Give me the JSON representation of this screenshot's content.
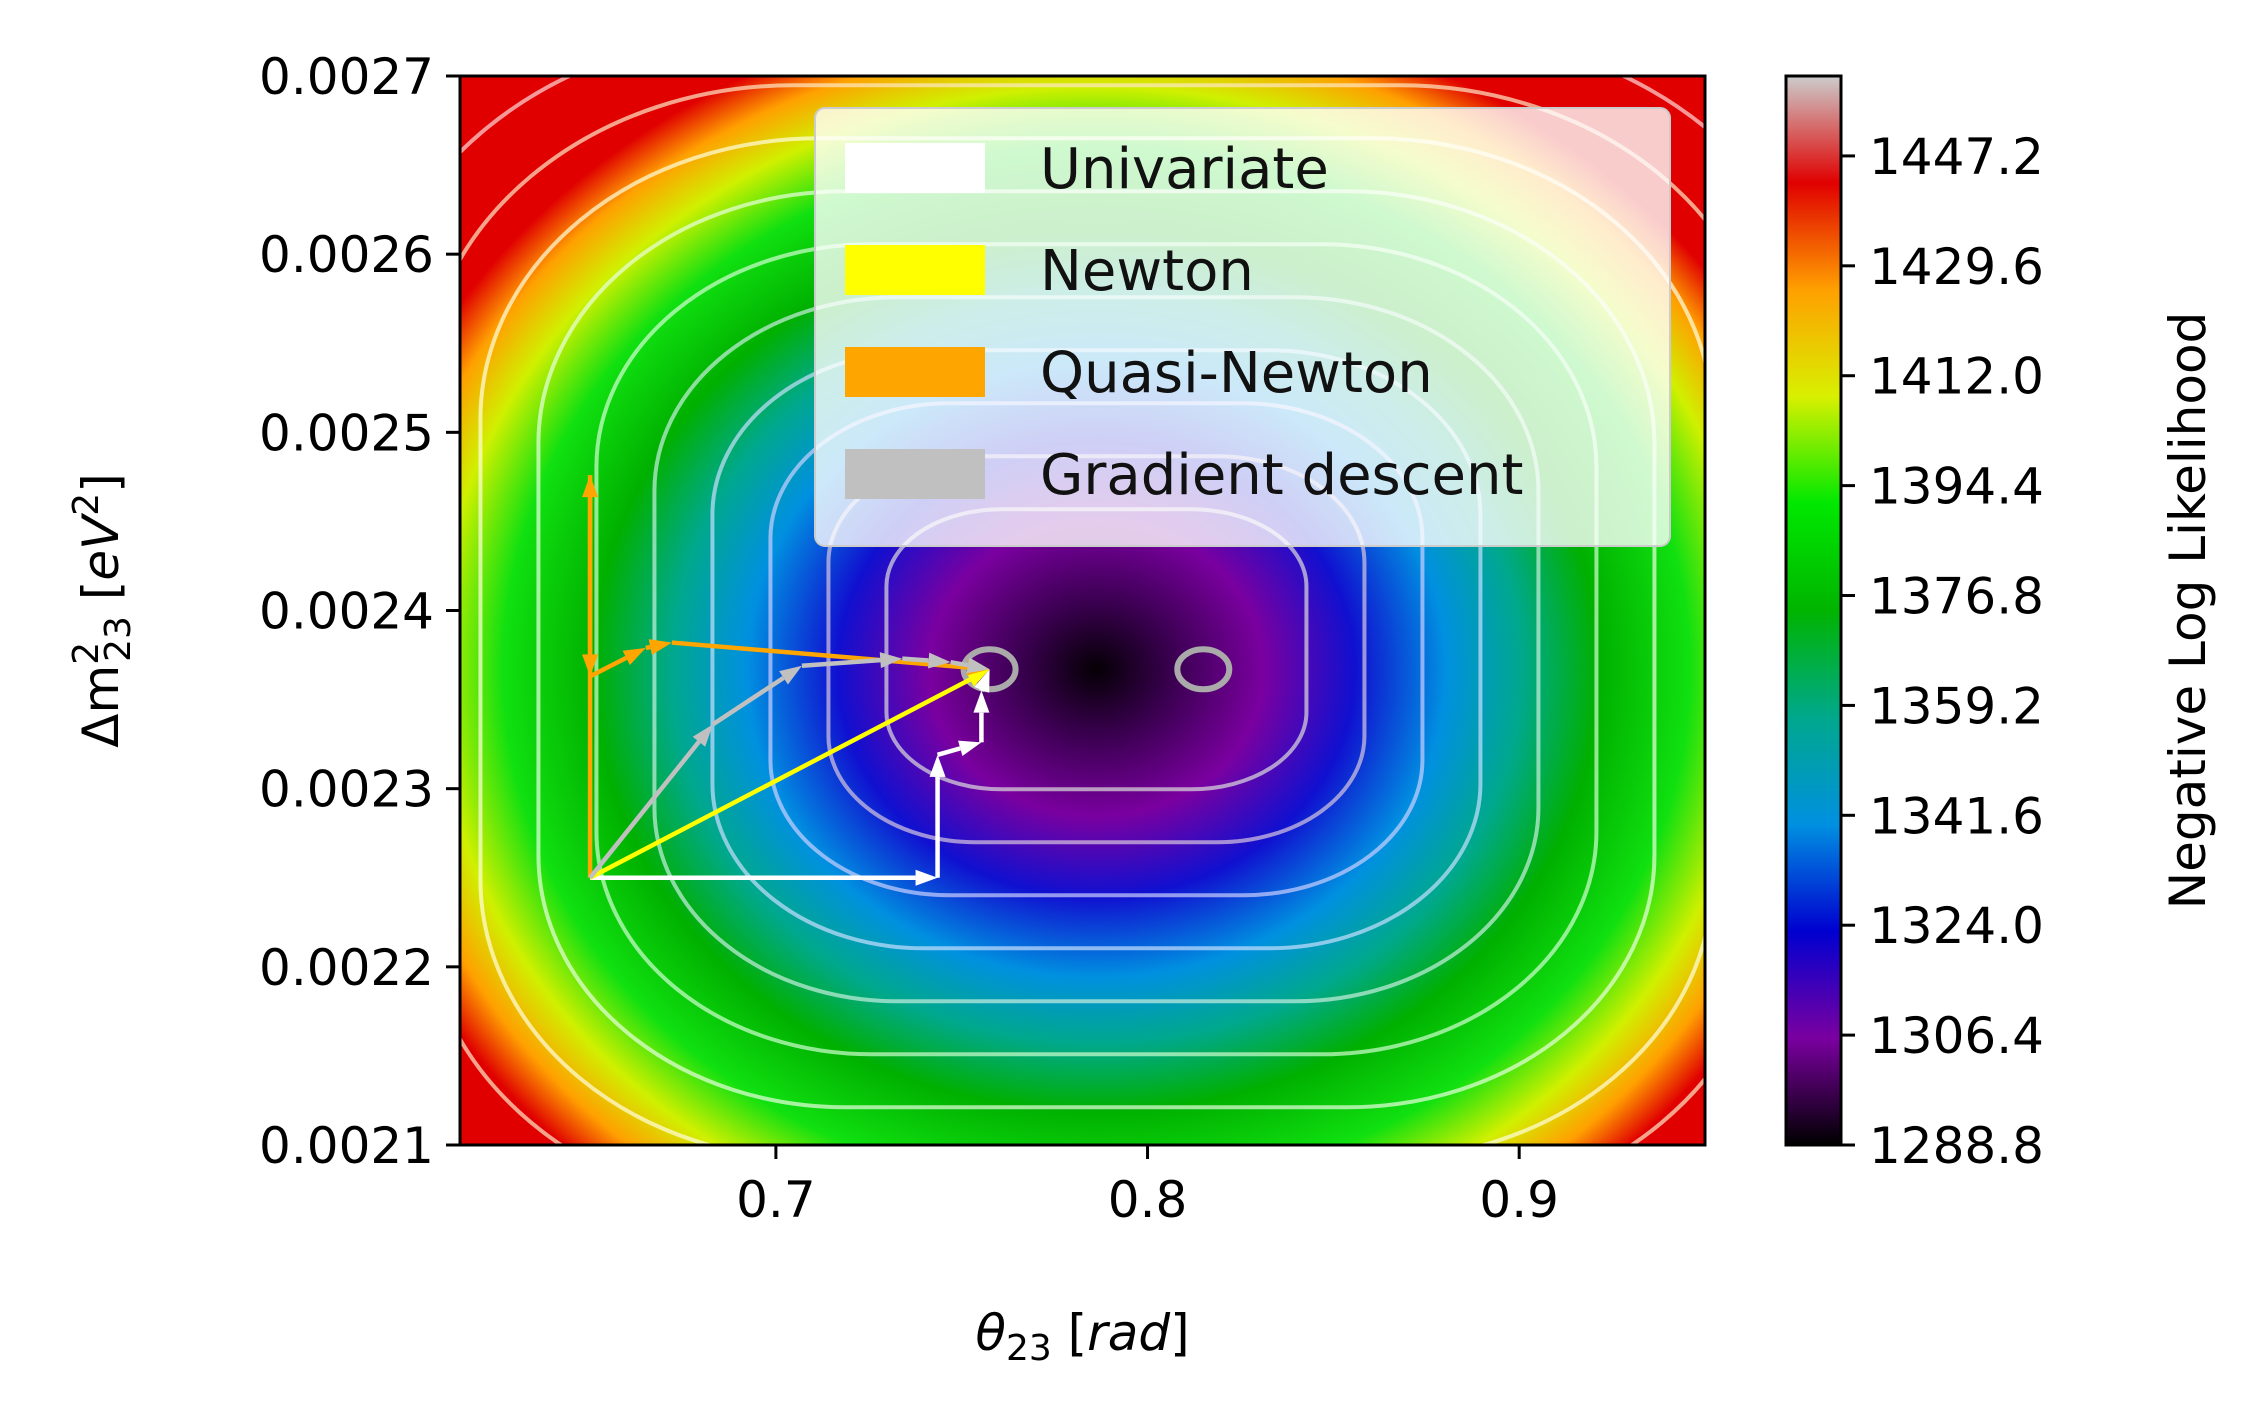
{
  "chart_data": {
    "type": "contour",
    "title": "",
    "xlabel": {
      "pre": "θ",
      "sub": "23",
      "unit": "rad"
    },
    "ylabel": {
      "pre": "Δm",
      "sup": "2",
      "sub": "23",
      "unit": "eV",
      "unit_sup": "2"
    },
    "xlim": [
      0.615,
      0.95
    ],
    "ylim": [
      0.0021,
      0.0027
    ],
    "xticks": [
      0.7,
      0.8,
      0.9
    ],
    "xtick_labels": [
      "0.7",
      "0.8",
      "0.9"
    ],
    "yticks": [
      0.0021,
      0.0022,
      0.0023,
      0.0024,
      0.0025,
      0.0026,
      0.0027
    ],
    "ytick_labels": [
      "0.0021",
      "0.0022",
      "0.0023",
      "0.0024",
      "0.0025",
      "0.0026",
      "0.0027"
    ],
    "colorbar": {
      "label": "Negative Log Likelihood",
      "min": 1288.8,
      "max": 1460,
      "ticks": [
        1288.8,
        1306.4,
        1324.0,
        1341.6,
        1359.2,
        1376.8,
        1394.4,
        1412.0,
        1429.6,
        1447.2
      ],
      "tick_labels": [
        "1288.8",
        "1306.4",
        "1324.0",
        "1341.6",
        "1359.2",
        "1376.8",
        "1394.4",
        "1412.0",
        "1429.6",
        "1447.2"
      ],
      "colormap": [
        "#000000",
        "#7a00a0",
        "#0000d0",
        "#0090e0",
        "#00a88c",
        "#00b400",
        "#00e800",
        "#d8f000",
        "#ffa000",
        "#e00000",
        "#cccccc"
      ]
    },
    "minima": [
      {
        "x": 0.7575,
        "y": 0.002367
      },
      {
        "x": 0.815,
        "y": 0.002367
      }
    ],
    "legend_position": "upper-center",
    "series": [
      {
        "name": "Univariate",
        "color": "#ffffff",
        "x": [
          0.65,
          0.7435,
          0.7435,
          0.7553,
          0.7553,
          0.7575
        ],
        "y": [
          0.00225,
          0.00225,
          0.002319,
          0.002326,
          0.002355,
          0.002367
        ]
      },
      {
        "name": "Newton",
        "color": "#ffff00",
        "x": [
          0.65,
          0.7575
        ],
        "y": [
          0.00225,
          0.002367
        ]
      },
      {
        "name": "Quasi-Newton",
        "color": "#ffa500",
        "x": [
          0.65,
          0.65,
          0.65,
          0.65,
          0.665,
          0.672,
          0.7575
        ],
        "y": [
          0.00225,
          0.002476,
          0.002363,
          0.002363,
          0.002379,
          0.002382,
          0.002367
        ]
      },
      {
        "name": "Gradient descent",
        "color": "#c0c0c0",
        "x": [
          0.65,
          0.683,
          0.707,
          0.734,
          0.747,
          0.7575
        ],
        "y": [
          0.00225,
          0.002336,
          0.002369,
          0.002373,
          0.002371,
          0.002367
        ]
      }
    ]
  }
}
